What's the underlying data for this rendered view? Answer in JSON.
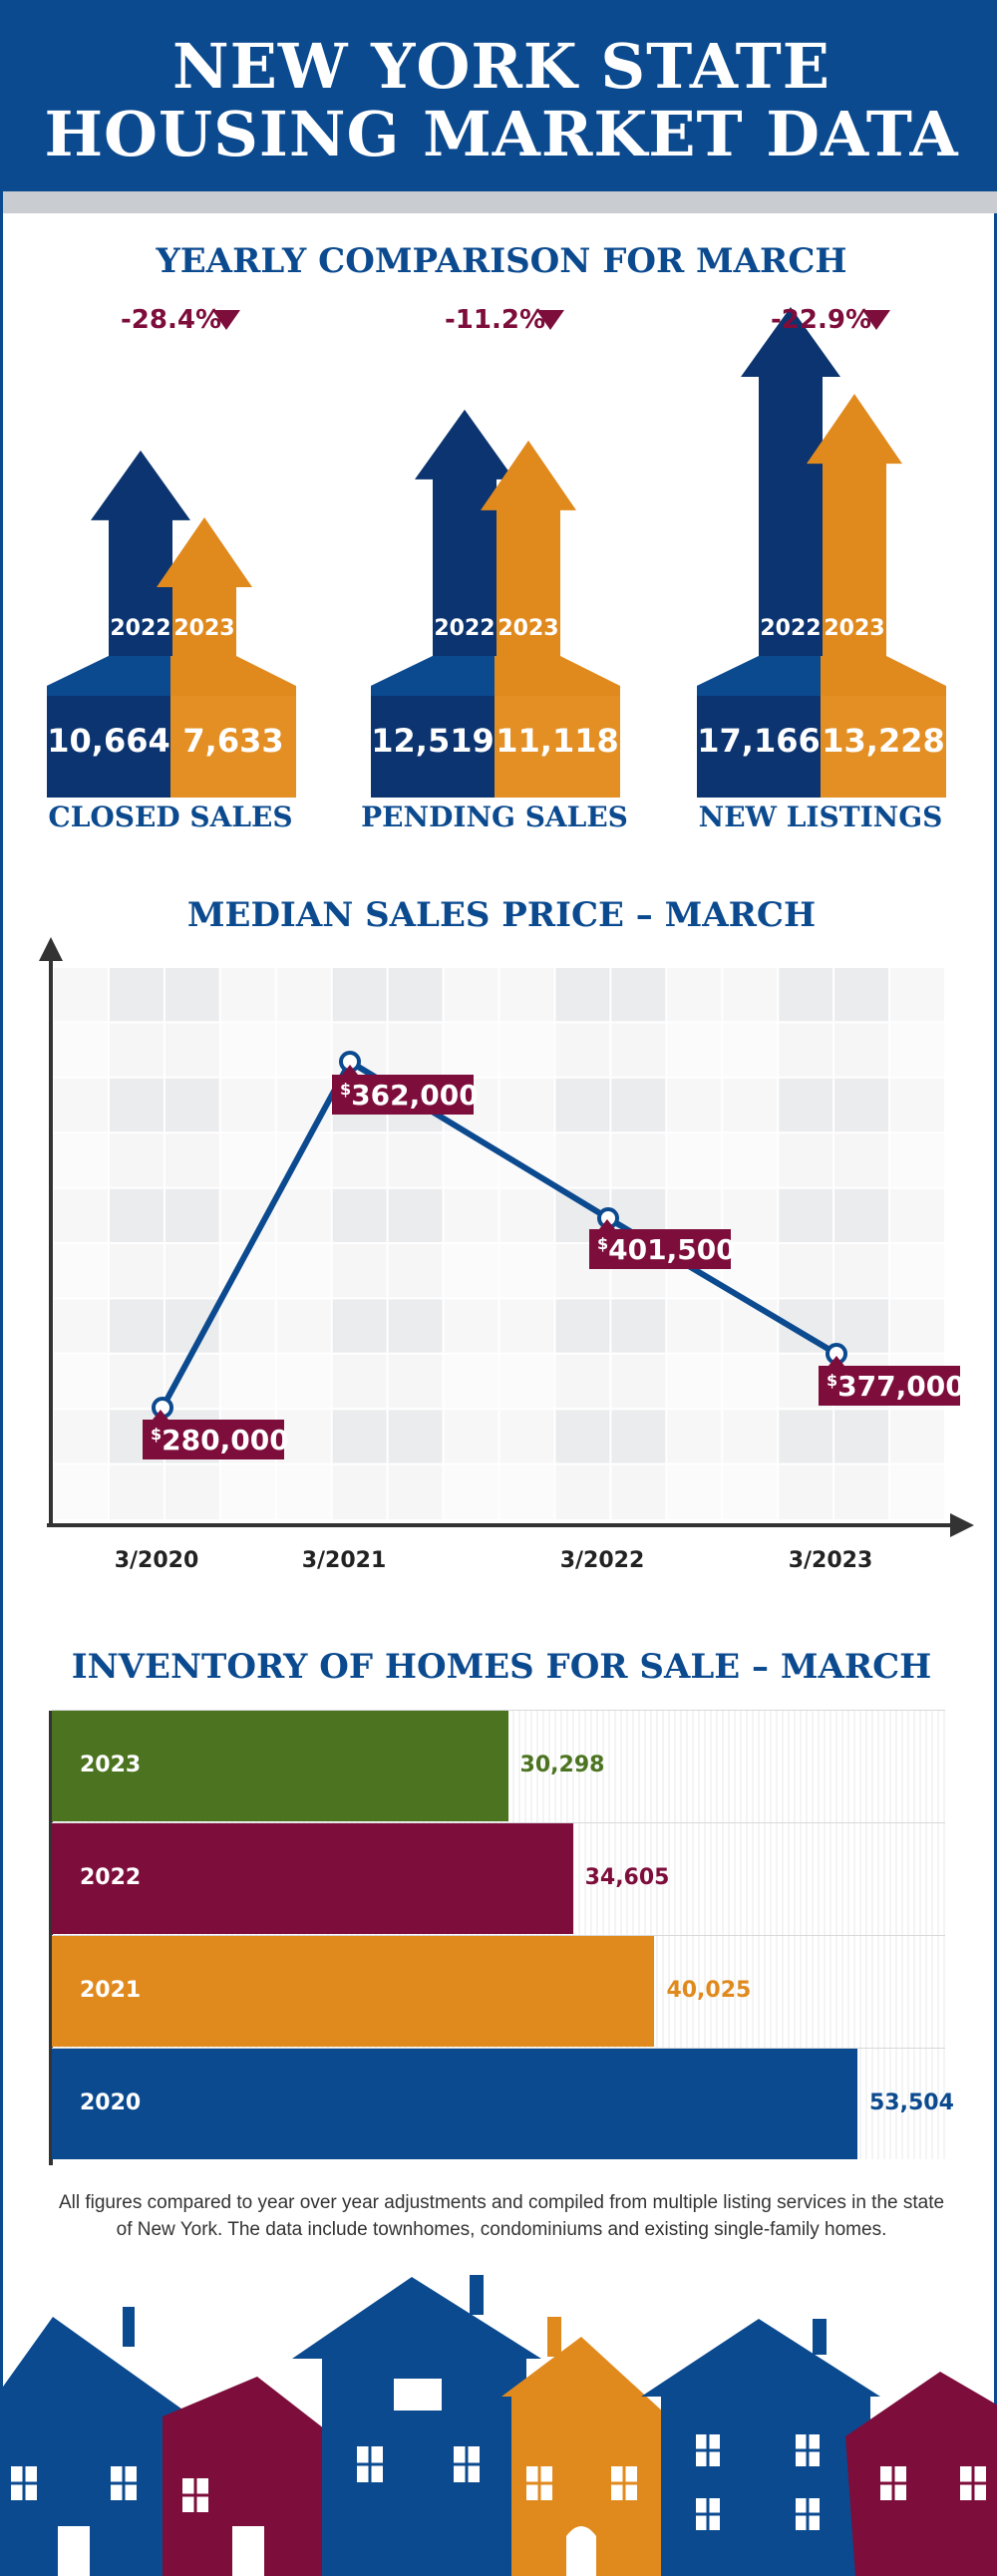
{
  "header": {
    "title_line1": "NEW YORK STATE",
    "title_line2": "HOUSING MARKET DATA"
  },
  "yearly": {
    "title": "YEARLY COMPARISON FOR MARCH",
    "year_a": "2022",
    "year_b": "2023",
    "items": [
      {
        "label": "CLOSED SALES",
        "change": "-28.4%",
        "value_a": "10,664",
        "value_b": "7,633"
      },
      {
        "label": "PENDING SALES",
        "change": "-11.2%",
        "value_a": "12,519",
        "value_b": "11,118"
      },
      {
        "label": "NEW LISTINGS",
        "change": "-22.9%",
        "value_a": "17,166",
        "value_b": "13,228"
      }
    ]
  },
  "median": {
    "title": "MEDIAN SALES PRICE – MARCH",
    "currency_symbol": "$",
    "point_labels": [
      "280,000",
      "362,000",
      "401,500",
      "377,000"
    ]
  },
  "inventory": {
    "title": "INVENTORY OF HOMES FOR SALE – MARCH"
  },
  "footnote": "All figures compared to year over year adjustments and compiled from multiple listing services in the state of New York.  The data include townhomes, condominiums and existing single-family homes.",
  "colors": {
    "navy": "#0b4a8f",
    "dark_navy": "#0b3470",
    "orange": "#e08a1e",
    "maroon": "#7d0d3b",
    "green": "#4c7420"
  },
  "chart_data": [
    {
      "type": "bar",
      "categories": [
        "CLOSED SALES",
        "PENDING SALES",
        "NEW LISTINGS"
      ],
      "series": [
        {
          "name": "2022",
          "values": [
            10664,
            12519,
            17166
          ]
        },
        {
          "name": "2023",
          "values": [
            7633,
            11118,
            13228
          ]
        }
      ],
      "title": "YEARLY COMPARISON FOR MARCH",
      "annotations": [
        "-28.4%",
        "-11.2%",
        "-22.9%"
      ]
    },
    {
      "type": "line",
      "x": [
        "3/2020",
        "3/2021",
        "3/2022",
        "3/2023"
      ],
      "y": [
        280000,
        362000,
        401500,
        377000
      ],
      "title": "MEDIAN SALES PRICE – MARCH",
      "grid": true
    },
    {
      "type": "bar",
      "orientation": "horizontal",
      "categories": [
        "2023",
        "2022",
        "2021",
        "2020"
      ],
      "values": [
        30298,
        34605,
        40025,
        53504
      ],
      "labels": [
        "30,298",
        "34,605",
        "40,025",
        "53,504"
      ],
      "title": "INVENTORY OF HOMES FOR SALE – MARCH",
      "xlim": [
        0,
        53504
      ]
    }
  ]
}
